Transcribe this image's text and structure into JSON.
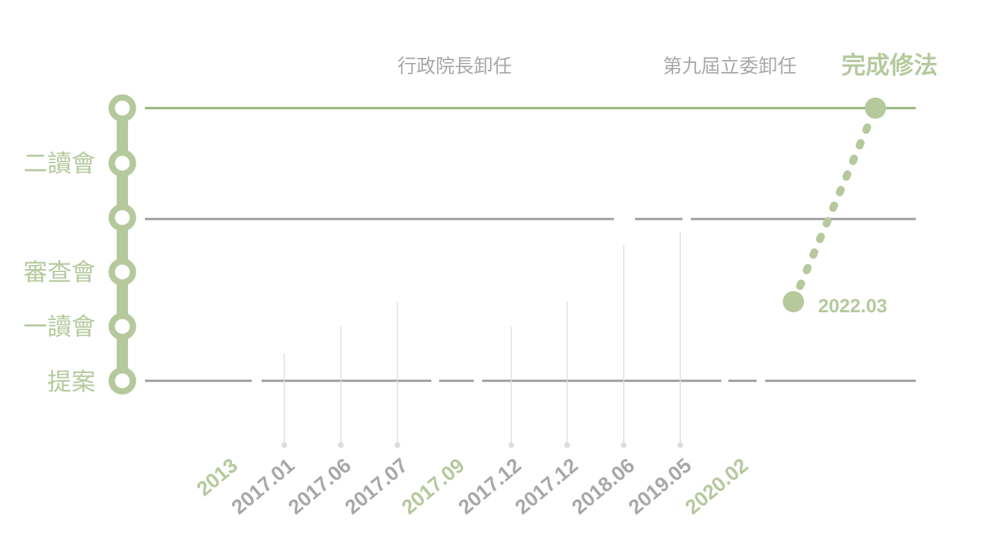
{
  "colors": {
    "green": "#b5c99d",
    "green_line": "#8fb070",
    "gray_line": "#999999",
    "gray_text": "#a8a8a8",
    "tick_gray": "#dddddd"
  },
  "stages": [
    "二讀會",
    "審查會",
    "一讀會",
    "提案"
  ],
  "events": {
    "premier_resign": "行政院長卸任",
    "legislator_resign": "第九屆立委卸任",
    "complete": "完成修法"
  },
  "end_date": "2022.03",
  "timeline": [
    {
      "label": "2013",
      "highlight": true
    },
    {
      "label": "2017.01",
      "highlight": false
    },
    {
      "label": "2017.06",
      "highlight": false
    },
    {
      "label": "2017.07",
      "highlight": false
    },
    {
      "label": "2017.09",
      "highlight": true
    },
    {
      "label": "2017.12",
      "highlight": false
    },
    {
      "label": "2017.12",
      "highlight": false
    },
    {
      "label": "2018.06",
      "highlight": false
    },
    {
      "label": "2019.05",
      "highlight": false
    },
    {
      "label": "2020.02",
      "highlight": true
    }
  ]
}
